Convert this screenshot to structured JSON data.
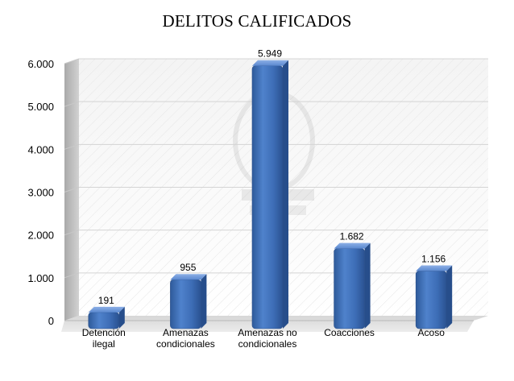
{
  "chart_data": {
    "type": "bar",
    "title": "DELITOS CALIFICADOS",
    "categories": [
      [
        "Detención",
        "ilegal"
      ],
      [
        "Amenazas",
        "condicionales"
      ],
      [
        "Amenazas no",
        "condicionales"
      ],
      [
        "Coacciones"
      ],
      [
        "Acoso"
      ]
    ],
    "values": [
      191,
      955,
      5949,
      1682,
      1156
    ],
    "value_labels": [
      "191",
      "955",
      "5.949",
      "1.682",
      "1.156"
    ],
    "ylim": [
      0,
      6000
    ],
    "y_ticks": [
      0,
      1000,
      2000,
      3000,
      4000,
      5000,
      6000
    ],
    "y_tick_labels": [
      "0",
      "1.000",
      "2.000",
      "3.000",
      "4.000",
      "5.000",
      "6.000"
    ],
    "xlabel": "",
    "ylabel": "",
    "grid": true,
    "legend": "none",
    "style": "3d",
    "bar_color": "#4472C4"
  }
}
